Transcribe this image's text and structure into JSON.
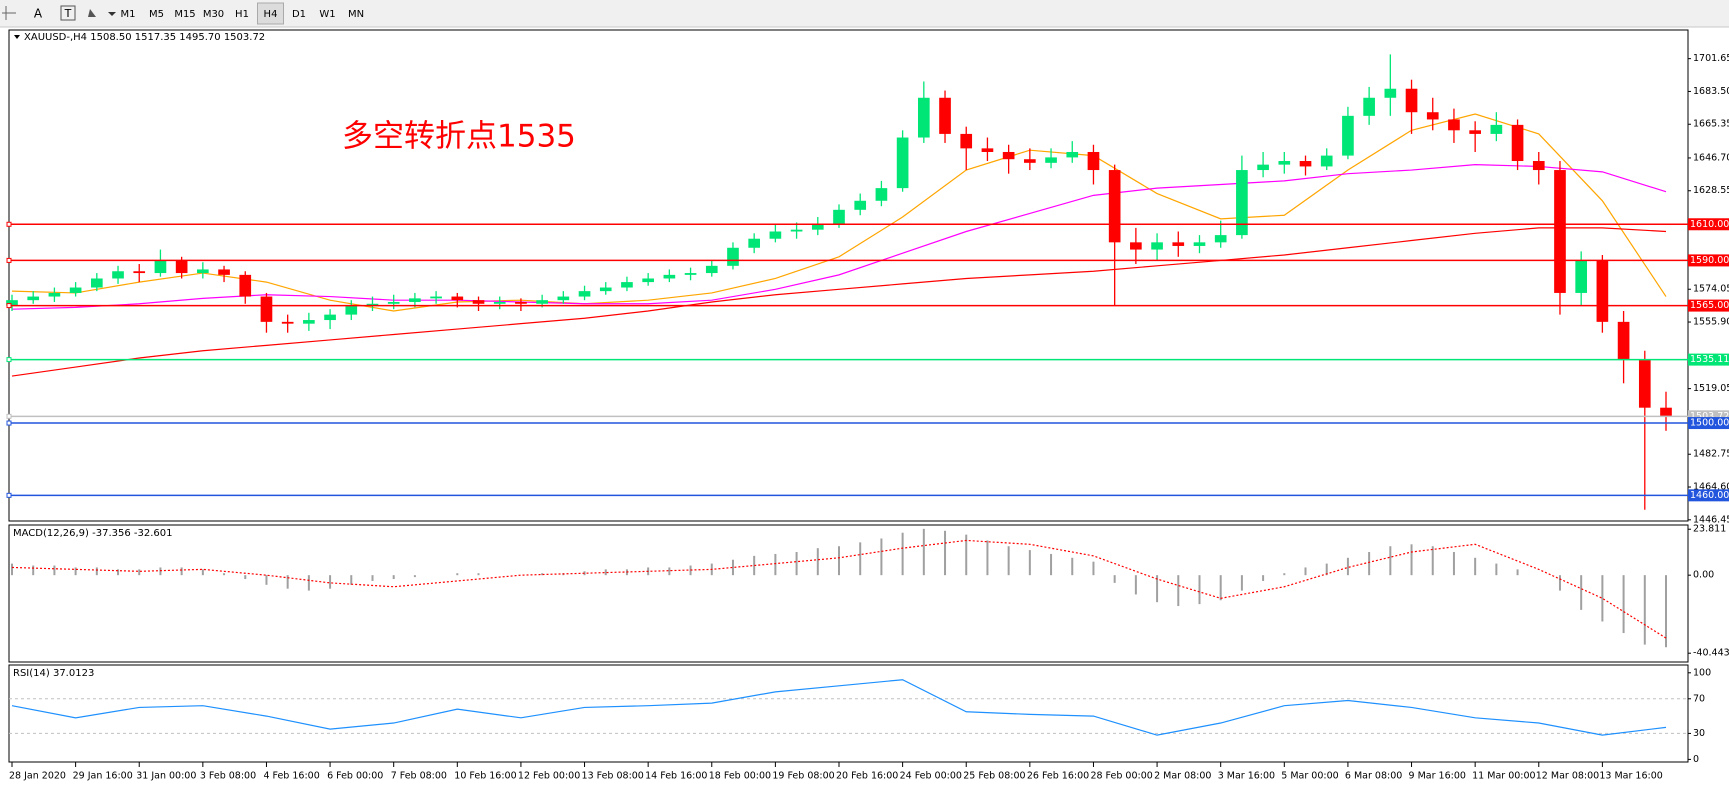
{
  "toolbar": {
    "tools": [
      "A"
    ],
    "timeframes": [
      "M1",
      "M5",
      "M15",
      "M30",
      "H1",
      "H4",
      "D1",
      "W1",
      "MN"
    ],
    "active": "H4"
  },
  "chart_data": [
    {
      "type": "candlestick",
      "title": "XAUUSD-,H4  1508.50 1517.35 1495.70 1503.72",
      "annotation": "多空转折点1535",
      "up_color": "#00e676",
      "down_color": "#ff0000",
      "categories": [
        "28 Jan 2020",
        null,
        null,
        "29 Jan 16:00",
        null,
        null,
        "31 Jan 00:00",
        null,
        null,
        "3 Feb 08:00",
        null,
        null,
        "4 Feb 16:00",
        null,
        null,
        "6 Feb 00:00",
        null,
        null,
        "7 Feb 08:00",
        null,
        null,
        "10 Feb 16:00",
        null,
        null,
        "12 Feb 00:00",
        null,
        null,
        "13 Feb 08:00",
        null,
        null,
        "14 Feb 16:00",
        null,
        null,
        "18 Feb 00:00",
        null,
        null,
        "19 Feb 08:00",
        null,
        null,
        "20 Feb 16:00",
        null,
        null,
        "24 Feb 00:00",
        null,
        null,
        "25 Feb 08:00",
        null,
        null,
        "26 Feb 16:00",
        null,
        null,
        "28 Feb 00:00",
        null,
        null,
        "2 Mar 08:00",
        null,
        null,
        "3 Mar 16:00",
        null,
        null,
        "5 Mar 00:00",
        null,
        null,
        "6 Mar 08:00",
        null,
        null,
        "9 Mar 16:00",
        null,
        null,
        "11 Mar 00:00",
        null,
        null,
        "12 Mar 08:00",
        null,
        null,
        "13 Mar 16:00",
        null,
        null,
        null
      ],
      "ohlc": [
        [
          1565,
          1571,
          1562,
          1568
        ],
        [
          1568,
          1573,
          1566,
          1570
        ],
        [
          1570,
          1575,
          1567,
          1572
        ],
        [
          1572,
          1578,
          1570,
          1575
        ],
        [
          1575,
          1583,
          1573,
          1580
        ],
        [
          1580,
          1587,
          1577,
          1584
        ],
        [
          1584,
          1588,
          1578,
          1583
        ],
        [
          1583,
          1596,
          1581,
          1590
        ],
        [
          1590,
          1592,
          1580,
          1583
        ],
        [
          1583,
          1589,
          1580,
          1585
        ],
        [
          1585,
          1587,
          1578,
          1582
        ],
        [
          1582,
          1584,
          1566,
          1570
        ],
        [
          1570,
          1572,
          1550,
          1556
        ],
        [
          1556,
          1560,
          1550,
          1555
        ],
        [
          1555,
          1561,
          1551,
          1557
        ],
        [
          1557,
          1563,
          1552,
          1560
        ],
        [
          1560,
          1568,
          1557,
          1565
        ],
        [
          1565,
          1570,
          1562,
          1566
        ],
        [
          1566,
          1571,
          1563,
          1567
        ],
        [
          1567,
          1572,
          1564,
          1569
        ],
        [
          1569,
          1573,
          1566,
          1570
        ],
        [
          1570,
          1572,
          1564,
          1568
        ],
        [
          1568,
          1570,
          1562,
          1566
        ],
        [
          1566,
          1570,
          1563,
          1567
        ],
        [
          1567,
          1569,
          1562,
          1566
        ],
        [
          1566,
          1571,
          1564,
          1568
        ],
        [
          1568,
          1573,
          1566,
          1570
        ],
        [
          1570,
          1576,
          1568,
          1573
        ],
        [
          1573,
          1578,
          1571,
          1575
        ],
        [
          1575,
          1581,
          1573,
          1578
        ],
        [
          1578,
          1583,
          1576,
          1580
        ],
        [
          1580,
          1585,
          1578,
          1582
        ],
        [
          1582,
          1586,
          1579,
          1583
        ],
        [
          1583,
          1590,
          1581,
          1587
        ],
        [
          1587,
          1600,
          1585,
          1597
        ],
        [
          1597,
          1605,
          1594,
          1602
        ],
        [
          1602,
          1610,
          1600,
          1606
        ],
        [
          1606,
          1611,
          1602,
          1607
        ],
        [
          1607,
          1614,
          1604,
          1610
        ],
        [
          1610,
          1621,
          1608,
          1618
        ],
        [
          1618,
          1627,
          1615,
          1623
        ],
        [
          1623,
          1634,
          1620,
          1630
        ],
        [
          1630,
          1662,
          1628,
          1658
        ],
        [
          1658,
          1689,
          1655,
          1680
        ],
        [
          1680,
          1684,
          1655,
          1660
        ],
        [
          1660,
          1664,
          1640,
          1652
        ],
        [
          1652,
          1658,
          1645,
          1650
        ],
        [
          1650,
          1654,
          1638,
          1646
        ],
        [
          1646,
          1652,
          1640,
          1644
        ],
        [
          1644,
          1652,
          1641,
          1647
        ],
        [
          1647,
          1656,
          1644,
          1650
        ],
        [
          1650,
          1654,
          1632,
          1640
        ],
        [
          1640,
          1643,
          1565,
          1600
        ],
        [
          1600,
          1608,
          1588,
          1596
        ],
        [
          1596,
          1605,
          1590,
          1600
        ],
        [
          1600,
          1606,
          1592,
          1598
        ],
        [
          1598,
          1604,
          1594,
          1600
        ],
        [
          1600,
          1612,
          1597,
          1604
        ],
        [
          1604,
          1648,
          1602,
          1640
        ],
        [
          1640,
          1650,
          1636,
          1643
        ],
        [
          1643,
          1650,
          1638,
          1645
        ],
        [
          1645,
          1648,
          1637,
          1642
        ],
        [
          1642,
          1652,
          1640,
          1648
        ],
        [
          1648,
          1675,
          1646,
          1670
        ],
        [
          1670,
          1686,
          1665,
          1680
        ],
        [
          1680,
          1704,
          1670,
          1685
        ],
        [
          1685,
          1690,
          1660,
          1672
        ],
        [
          1672,
          1680,
          1662,
          1668
        ],
        [
          1668,
          1674,
          1655,
          1662
        ],
        [
          1662,
          1667,
          1650,
          1660
        ],
        [
          1660,
          1672,
          1656,
          1665
        ],
        [
          1665,
          1668,
          1640,
          1645
        ],
        [
          1645,
          1650,
          1632,
          1640
        ],
        [
          1640,
          1645,
          1560,
          1572
        ],
        [
          1572,
          1595,
          1565,
          1590
        ],
        [
          1590,
          1593,
          1550,
          1556
        ],
        [
          1556,
          1562,
          1522,
          1535
        ],
        [
          1535,
          1540,
          1452,
          1508.5
        ],
        [
          1508.5,
          1517.35,
          1495.7,
          1503.72
        ]
      ],
      "series": [
        {
          "color": "#ffa500",
          "x": [
            0,
            3,
            6,
            9,
            12,
            15,
            18,
            21,
            24,
            27,
            30,
            33,
            36,
            39,
            42,
            45,
            48,
            51,
            54,
            57,
            60,
            63,
            66,
            69,
            72,
            75,
            78
          ],
          "values": [
            1573,
            1572,
            1578,
            1583,
            1578,
            1568,
            1562,
            1567,
            1568,
            1566,
            1568,
            1572,
            1580,
            1592,
            1614,
            1640,
            1651,
            1648,
            1627,
            1613,
            1615,
            1640,
            1662,
            1671,
            1660,
            1623,
            1570
          ]
        },
        {
          "color": "#ff00ff",
          "x": [
            0,
            3,
            6,
            9,
            12,
            15,
            18,
            21,
            24,
            27,
            30,
            33,
            36,
            39,
            42,
            45,
            48,
            51,
            54,
            57,
            60,
            63,
            66,
            69,
            72,
            75,
            78
          ],
          "values": [
            1563,
            1564,
            1566,
            1569,
            1571,
            1570,
            1568,
            1568,
            1567,
            1566,
            1566,
            1568,
            1574,
            1582,
            1594,
            1606,
            1616,
            1626,
            1630,
            1632,
            1634,
            1638,
            1640,
            1643,
            1642,
            1639,
            1628
          ]
        },
        {
          "color": "#ff0000",
          "x": [
            0,
            3,
            6,
            9,
            12,
            15,
            18,
            21,
            24,
            27,
            30,
            33,
            36,
            39,
            42,
            45,
            48,
            51,
            54,
            57,
            60,
            63,
            66,
            69,
            72,
            75,
            78
          ],
          "values": [
            1526,
            1531,
            1536,
            1540,
            1543,
            1546,
            1549,
            1552,
            1555,
            1558,
            1562,
            1567,
            1571,
            1574,
            1577,
            1580,
            1582,
            1584,
            1587,
            1590,
            1593,
            1597,
            1601,
            1605,
            1608,
            1608,
            1606
          ]
        }
      ],
      "levels": [
        {
          "value": 1610,
          "label": "1610.00",
          "color": "#ff0000"
        },
        {
          "value": 1590,
          "label": "1590.00",
          "color": "#ff0000"
        },
        {
          "value": 1565,
          "label": "1565.00",
          "color": "#ff0000"
        },
        {
          "value": 1535.11,
          "label": "1535.11",
          "color": "#00e676"
        },
        {
          "value": 1503.72,
          "label": "1503.72",
          "color": "#c0c0c0"
        },
        {
          "value": 1500,
          "label": "1500.00",
          "color": "#2255dd"
        },
        {
          "value": 1460,
          "label": "1460.00",
          "color": "#2255dd"
        }
      ],
      "ylim": [
        1445.8,
        1717.5
      ],
      "yticks": [
        1701.65,
        {
          "value": 1683.5,
          "label": "1683.50"
        },
        1665.35,
        {
          "value": 1646.7,
          "label": "1646.70"
        },
        1628.55,
        1574.05,
        {
          "value": 1555.9,
          "label": "1555.90"
        },
        1519.05,
        1482.75,
        {
          "value": 1464.6,
          "label": "1464.60"
        },
        1446.45
      ]
    },
    {
      "type": "macd",
      "title": "MACD(12,26,9) -37.356 -32.601",
      "color": "#a0a0a0",
      "values": [
        6,
        5,
        5,
        4,
        4,
        3,
        3,
        4,
        4,
        3,
        1,
        -2,
        -5,
        -7,
        -8,
        -7,
        -5,
        -3,
        -2,
        -1,
        0,
        1,
        1,
        0,
        0,
        1,
        1,
        2,
        3,
        3,
        4,
        4,
        5,
        6,
        8,
        10,
        11,
        12,
        14,
        15,
        17,
        19,
        22,
        24,
        23,
        21,
        18,
        15,
        13,
        11,
        9,
        7,
        -4,
        -10,
        -14,
        -16,
        -15,
        -13,
        -8,
        -3,
        1,
        4,
        6,
        9,
        12,
        15,
        16,
        15,
        12,
        9,
        6,
        3,
        0,
        -8,
        -18,
        -24,
        -30,
        -36,
        -37.356
      ],
      "signal": {
        "color": "#ff0000",
        "x": [
          0,
          3,
          6,
          9,
          12,
          15,
          18,
          21,
          24,
          27,
          30,
          33,
          36,
          39,
          42,
          45,
          48,
          51,
          54,
          57,
          60,
          63,
          66,
          69,
          72,
          75,
          78
        ],
        "values": [
          4,
          3,
          2,
          3,
          0,
          -4,
          -6,
          -3,
          0,
          1,
          2,
          3,
          6,
          9,
          14,
          18,
          16,
          10,
          -2,
          -12,
          -6,
          4,
          12,
          16,
          3,
          -12,
          -32.601
        ]
      },
      "ylim": [
        -45,
        26
      ],
      "yticks": [
        23.811,
        {
          "value": 0,
          "label": "0.00"
        },
        -40.443
      ]
    },
    {
      "type": "line",
      "title": "RSI(14) 37.0123",
      "color": "#1e90ff",
      "levels": [
        70,
        30
      ],
      "x": [
        0,
        3,
        6,
        9,
        12,
        15,
        18,
        21,
        24,
        27,
        30,
        33,
        36,
        39,
        42,
        45,
        48,
        51,
        54,
        57,
        60,
        63,
        66,
        69,
        72,
        75,
        78
      ],
      "values": [
        62,
        48,
        60,
        62,
        50,
        35,
        42,
        58,
        48,
        60,
        62,
        65,
        78,
        85,
        92,
        55,
        52,
        50,
        28,
        42,
        62,
        68,
        60,
        48,
        42,
        28,
        37.0123
      ],
      "ylim": [
        -3,
        109
      ],
      "yticks": [
        100,
        70,
        30,
        0
      ]
    }
  ]
}
